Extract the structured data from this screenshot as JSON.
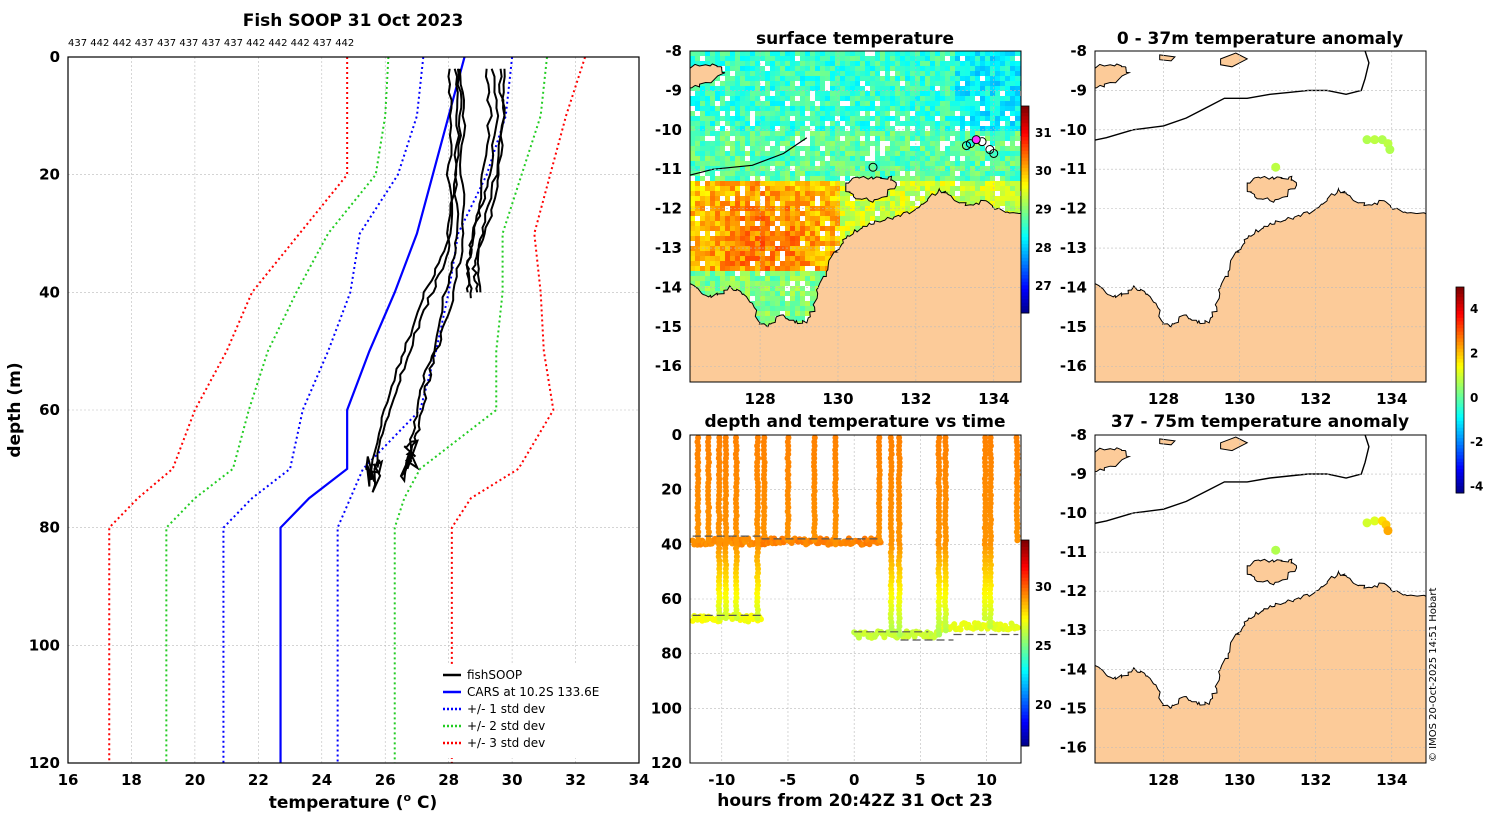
{
  "colors": {
    "land": "#fccb99",
    "fishsoop": "#000000",
    "cars": "#0000ff",
    "std1": "#0000ff",
    "std2": "#22cc22",
    "std3": "#ff0000",
    "dashed": "#555555"
  },
  "credit": "© IMOS 20-Oct-2025 14:51 Hobart",
  "chart_data": [
    {
      "type": "line",
      "id": "profile",
      "title": "Fish SOOP 31 Oct 2023",
      "top_labels": "437 442 442 437 437 437 437 437 442 442 442 437 442",
      "xlabel": "temperature (",
      "xlabel_sup": "o",
      "xlabel_end": " C)",
      "ylabel": "depth (m)",
      "xlim": [
        16,
        34
      ],
      "ylim": [
        0,
        120
      ],
      "xticks": [
        "16",
        "18",
        "20",
        "22",
        "24",
        "26",
        "28",
        "30",
        "32",
        "34"
      ],
      "yticks": [
        "0",
        "20",
        "40",
        "60",
        "80",
        "100",
        "120"
      ],
      "depth_levels": [
        0,
        10,
        20,
        30,
        40,
        50,
        60,
        70,
        75,
        80,
        120
      ],
      "series": [
        {
          "name": "CARS at 10.2S 133.6E",
          "style": "solid",
          "color_key": "cars",
          "values": [
            28.5,
            28.0,
            27.5,
            27.0,
            26.3,
            25.5,
            24.8,
            24.8,
            23.6,
            22.7,
            22.7
          ]
        },
        {
          "name": "+/- 1 std dev",
          "style": "dotted",
          "color_key": "std1",
          "values": [
            30.0,
            29.8,
            29.2,
            28.3,
            28.0,
            27.6,
            27.1,
            25.3,
            24.9,
            24.5,
            24.5
          ]
        },
        {
          "name": "",
          "style": "dotted",
          "color_key": "std1",
          "values": [
            27.2,
            27.0,
            26.4,
            25.2,
            24.9,
            24.2,
            23.4,
            23.0,
            21.8,
            20.9,
            20.9
          ]
        },
        {
          "name": "+/- 2 std dev",
          "style": "dotted",
          "color_key": "std2",
          "values": [
            31.1,
            30.9,
            30.3,
            29.7,
            29.7,
            29.5,
            29.5,
            27.1,
            26.6,
            26.3,
            26.3
          ]
        },
        {
          "name": "",
          "style": "dotted",
          "color_key": "std2",
          "values": [
            26.1,
            26.0,
            25.7,
            24.2,
            23.2,
            22.3,
            21.7,
            21.2,
            20.0,
            19.1,
            19.1
          ]
        },
        {
          "name": "+/- 3 std dev",
          "style": "dotted",
          "color_key": "std3",
          "values": [
            32.3,
            31.7,
            31.2,
            30.7,
            30.9,
            31.0,
            31.3,
            30.2,
            28.7,
            28.1,
            28.1
          ]
        },
        {
          "name": "",
          "style": "dotted",
          "color_key": "std3",
          "values": [
            24.8,
            24.8,
            24.8,
            23.3,
            21.8,
            21.0,
            20.0,
            19.3,
            18.2,
            17.3,
            17.3
          ]
        }
      ],
      "fishsoop_name": "fishSOOP",
      "fishsoop_profiles": [
        {
          "t": [
            28.2,
            28.3,
            28.2,
            28.3,
            28.1,
            27.8,
            27.5,
            27.2,
            27.0,
            26.8,
            26.6
          ],
          "d": [
            2,
            10,
            20,
            30,
            35,
            42,
            50,
            55,
            60,
            66,
            72
          ]
        },
        {
          "t": [
            28.4,
            28.5,
            28.4,
            28.5,
            28.3,
            28.0,
            27.6,
            27.3,
            27.1,
            26.9,
            26.7
          ],
          "d": [
            2,
            10,
            20,
            30,
            36,
            44,
            50,
            56,
            62,
            66,
            70
          ]
        },
        {
          "t": [
            28.0,
            28.1,
            28.0,
            28.1,
            27.8,
            27.3,
            26.9,
            26.5,
            26.1,
            25.8,
            25.6
          ],
          "d": [
            2,
            10,
            20,
            30,
            36,
            42,
            48,
            54,
            60,
            66,
            74
          ]
        },
        {
          "t": [
            28.3,
            28.4,
            28.2,
            28.0,
            27.6,
            27.1,
            26.6,
            26.2,
            25.8,
            25.5
          ],
          "d": [
            2,
            10,
            20,
            30,
            36,
            42,
            50,
            56,
            64,
            73
          ]
        },
        {
          "t": [
            29.4,
            29.5,
            29.3,
            29.0,
            28.7,
            28.6,
            28.6
          ],
          "d": [
            2,
            10,
            20,
            26,
            32,
            36,
            40
          ]
        },
        {
          "t": [
            29.6,
            29.7,
            29.6,
            29.4,
            29.0,
            28.8,
            28.9
          ],
          "d": [
            2,
            10,
            20,
            26,
            32,
            36,
            40
          ]
        },
        {
          "t": [
            29.2,
            29.3,
            29.1,
            28.9,
            28.7,
            28.6,
            28.7
          ],
          "d": [
            2,
            10,
            20,
            26,
            32,
            36,
            41
          ]
        },
        {
          "t": [
            29.8,
            29.7,
            29.5,
            29.1,
            28.9,
            29.0
          ],
          "d": [
            2,
            10,
            20,
            28,
            34,
            40
          ]
        }
      ]
    },
    {
      "type": "heatmap",
      "id": "sst",
      "title": "surface temperature",
      "xlim": [
        126.2,
        134.7
      ],
      "ylim": [
        -16.4,
        -8
      ],
      "xticks": [
        "128",
        "130",
        "132",
        "134"
      ],
      "yticks": [
        "-8",
        "-9",
        "-10",
        "-11",
        "-12",
        "-13",
        "-14",
        "-15",
        "-16"
      ],
      "colorbar": {
        "range": [
          26.3,
          31.7
        ],
        "ticks": [
          "27",
          "28",
          "29",
          "30",
          "31"
        ]
      },
      "stations": [
        [
          133.4,
          -10.35
        ],
        [
          133.7,
          -10.3
        ],
        [
          133.9,
          -10.5
        ],
        [
          134.0,
          -10.6
        ],
        [
          130.9,
          -10.95
        ],
        [
          133.3,
          -10.4
        ],
        [
          133.55,
          -10.25
        ]
      ]
    },
    {
      "type": "scatter",
      "id": "depth_time",
      "title": "depth and temperature vs time",
      "xlabel": "hours from 20:42Z 31 Oct 23",
      "xlim": [
        -12.4,
        12.6
      ],
      "ylim": [
        0,
        120
      ],
      "xticks": [
        "-10",
        "-5",
        "0",
        "5",
        "10"
      ],
      "yticks": [
        "0",
        "20",
        "40",
        "60",
        "80",
        "100",
        "120"
      ],
      "colorbar": {
        "range": [
          16.5,
          34
        ],
        "ticks": [
          "20",
          "25",
          "30"
        ]
      },
      "casts": [
        {
          "t": -11.8,
          "d": 39
        },
        {
          "t": -11.0,
          "d": 39
        },
        {
          "t": -10.2,
          "d": 67
        },
        {
          "t": -9.7,
          "d": 68
        },
        {
          "t": -8.9,
          "d": 67
        },
        {
          "t": -7.3,
          "d": 67
        },
        {
          "t": -6.8,
          "d": 38
        },
        {
          "t": -5.0,
          "d": 39
        },
        {
          "t": -3.0,
          "d": 39
        },
        {
          "t": -1.4,
          "d": 40
        },
        {
          "t": 1.9,
          "d": 39
        },
        {
          "t": 2.8,
          "d": 72
        },
        {
          "t": 3.4,
          "d": 73
        },
        {
          "t": 6.4,
          "d": 74
        },
        {
          "t": 6.9,
          "d": 72
        },
        {
          "t": 9.9,
          "d": 68
        },
        {
          "t": 10.3,
          "d": 70
        },
        {
          "t": 12.3,
          "d": 39
        }
      ],
      "bottom_segments": [
        {
          "t0": -12.2,
          "t1": -7.0,
          "d": 39,
          "temp": 29.4
        },
        {
          "t0": -12.2,
          "t1": -7.0,
          "d": 67,
          "temp": 27.3
        },
        {
          "t0": -7.0,
          "t1": 2.1,
          "d": 39,
          "temp": 29.6
        },
        {
          "t0": 0.0,
          "t1": 6.6,
          "d": 73,
          "temp": 26.5
        },
        {
          "t0": 6.6,
          "t1": 12.4,
          "d": 70,
          "temp": 27.0
        }
      ],
      "dashed": [
        {
          "t0": -12.2,
          "t1": -7.0,
          "d": 37
        },
        {
          "t0": -12.2,
          "t1": -7.0,
          "d": 66
        },
        {
          "t0": -7.0,
          "t1": 2.0,
          "d": 38
        },
        {
          "t0": 0.0,
          "t1": 5.6,
          "d": 72
        },
        {
          "t0": 3.5,
          "t1": 7.5,
          "d": 75
        },
        {
          "t0": 7.5,
          "t1": 12.4,
          "d": 73
        }
      ]
    },
    {
      "type": "scatter",
      "id": "anom1",
      "title": "0 - 37m temperature anomaly",
      "xlim": [
        126.2,
        134.9
      ],
      "ylim": [
        -16.4,
        -8
      ],
      "xticks": [
        "128",
        "130",
        "132",
        "134"
      ],
      "yticks": [
        "-8",
        "-9",
        "-10",
        "-11",
        "-12",
        "-13",
        "-14",
        "-15",
        "-16"
      ],
      "points": [
        [
          133.35,
          -10.25,
          0.8
        ],
        [
          133.55,
          -10.25,
          0.9
        ],
        [
          133.75,
          -10.25,
          0.8
        ],
        [
          133.9,
          -10.35,
          0.9
        ],
        [
          133.95,
          -10.5,
          0.8
        ],
        [
          130.95,
          -10.95,
          0.9
        ]
      ]
    },
    {
      "type": "scatter",
      "id": "anom2",
      "title": "37 - 75m temperature anomaly",
      "xlim": [
        126.2,
        134.9
      ],
      "ylim": [
        -16.4,
        -8
      ],
      "xticks": [
        "128",
        "130",
        "132",
        "134"
      ],
      "yticks": [
        "-8",
        "-9",
        "-10",
        "-11",
        "-12",
        "-13",
        "-14",
        "-15",
        "-16"
      ],
      "points": [
        [
          133.35,
          -10.25,
          1.1
        ],
        [
          133.55,
          -10.2,
          1.2
        ],
        [
          133.75,
          -10.2,
          1.8
        ],
        [
          133.85,
          -10.3,
          2.0
        ],
        [
          133.9,
          -10.45,
          2.3
        ],
        [
          130.95,
          -10.95,
          0.8
        ]
      ],
      "colorbar": {
        "range": [
          -4.3,
          5
        ],
        "ticks": [
          "4",
          "2",
          "0",
          "-2",
          "-4"
        ]
      }
    }
  ],
  "legend": {
    "items": [
      "fishSOOP",
      "CARS at 10.2S 133.6E",
      "+/- 1 std dev",
      "+/- 2 std dev",
      "+/- 3 std dev"
    ]
  }
}
